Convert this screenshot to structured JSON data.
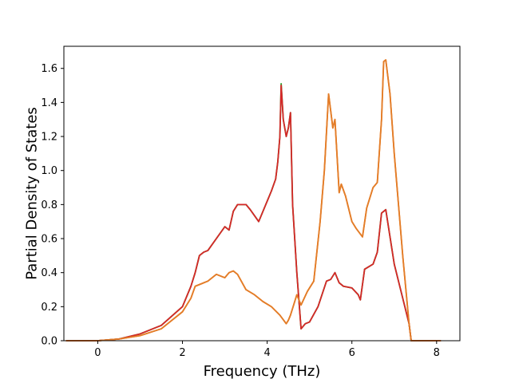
{
  "chart_data": {
    "type": "line",
    "title": "",
    "xlabel": "Frequency (THz)",
    "ylabel": "Partial Density of States",
    "xlim": [
      -0.8,
      8.55
    ],
    "ylim": [
      0.0,
      1.73
    ],
    "xticks": [
      0,
      2,
      4,
      6,
      8
    ],
    "xtick_labels": [
      "0",
      "2",
      "4",
      "6",
      "8"
    ],
    "yticks": [
      0.0,
      0.2,
      0.4,
      0.6,
      0.8,
      1.0,
      1.2,
      1.4,
      1.6
    ],
    "ytick_labels": [
      "0.0",
      "0.2",
      "0.4",
      "0.6",
      "0.8",
      "1.0",
      "1.2",
      "1.4",
      "1.6"
    ],
    "grid": false,
    "legend": "none",
    "series": [
      {
        "color": "#2ca02c",
        "x": [
          -0.75,
          0.0,
          0.5,
          1.0,
          1.5,
          2.0,
          2.2,
          2.3,
          2.4,
          2.5,
          2.6,
          2.8,
          3.0,
          3.1,
          3.2,
          3.3,
          3.5,
          3.6,
          3.8,
          4.0,
          4.1,
          4.2,
          4.25,
          4.3,
          4.33,
          4.38,
          4.45,
          4.5,
          4.55,
          4.6,
          4.7,
          4.8,
          4.9,
          5.0,
          5.2,
          5.4,
          5.5,
          5.6,
          5.7,
          5.8,
          6.0,
          6.15,
          6.2,
          6.3,
          6.5,
          6.6,
          6.7,
          6.8,
          7.0,
          7.2,
          7.35,
          7.4,
          8.1
        ],
        "y": [
          0.0,
          0.0,
          0.01,
          0.04,
          0.09,
          0.2,
          0.32,
          0.4,
          0.5,
          0.52,
          0.53,
          0.6,
          0.67,
          0.65,
          0.76,
          0.8,
          0.8,
          0.77,
          0.7,
          0.82,
          0.88,
          0.95,
          1.05,
          1.2,
          1.51,
          1.3,
          1.2,
          1.25,
          1.34,
          0.8,
          0.4,
          0.07,
          0.1,
          0.11,
          0.2,
          0.35,
          0.36,
          0.4,
          0.34,
          0.32,
          0.31,
          0.27,
          0.24,
          0.42,
          0.45,
          0.52,
          0.75,
          0.77,
          0.45,
          0.25,
          0.1,
          0.0,
          0.0
        ]
      },
      {
        "color": "#ff7f0e",
        "x": [
          -0.75,
          0.0,
          0.5,
          1.0,
          1.5,
          2.0,
          2.2,
          2.3,
          2.4,
          2.6,
          2.8,
          3.0,
          3.1,
          3.2,
          3.3,
          3.5,
          3.7,
          3.9,
          4.1,
          4.3,
          4.45,
          4.5,
          4.55,
          4.7,
          4.8,
          4.95,
          5.1,
          5.25,
          5.35,
          5.45,
          5.55,
          5.6,
          5.7,
          5.75,
          5.85,
          6.0,
          6.1,
          6.25,
          6.35,
          6.5,
          6.6,
          6.7,
          6.75,
          6.8,
          6.9,
          7.0,
          7.2,
          7.35,
          7.4,
          8.1
        ],
        "y": [
          0.0,
          0.0,
          0.01,
          0.03,
          0.07,
          0.17,
          0.25,
          0.32,
          0.33,
          0.35,
          0.39,
          0.37,
          0.4,
          0.41,
          0.39,
          0.3,
          0.27,
          0.23,
          0.2,
          0.15,
          0.1,
          0.12,
          0.15,
          0.27,
          0.21,
          0.29,
          0.35,
          0.7,
          1.0,
          1.45,
          1.25,
          1.3,
          0.87,
          0.92,
          0.85,
          0.7,
          0.66,
          0.61,
          0.78,
          0.9,
          0.93,
          1.3,
          1.64,
          1.65,
          1.45,
          1.1,
          0.5,
          0.1,
          0.0,
          0.0
        ]
      },
      {
        "color": "#d62728",
        "x": [
          -0.75,
          0.0,
          0.5,
          1.0,
          1.5,
          2.0,
          2.2,
          2.3,
          2.4,
          2.5,
          2.6,
          2.8,
          3.0,
          3.1,
          3.2,
          3.3,
          3.5,
          3.6,
          3.8,
          4.0,
          4.1,
          4.2,
          4.25,
          4.3,
          4.33,
          4.38,
          4.45,
          4.5,
          4.55,
          4.6,
          4.7,
          4.8,
          4.9,
          5.0,
          5.2,
          5.4,
          5.5,
          5.6,
          5.7,
          5.8,
          6.0,
          6.15,
          6.2,
          6.3,
          6.5,
          6.6,
          6.7,
          6.8,
          7.0,
          7.2,
          7.35,
          7.4,
          8.1
        ],
        "y": [
          0.0,
          0.0,
          0.01,
          0.04,
          0.09,
          0.2,
          0.32,
          0.4,
          0.5,
          0.52,
          0.53,
          0.6,
          0.67,
          0.65,
          0.76,
          0.8,
          0.8,
          0.77,
          0.7,
          0.82,
          0.88,
          0.95,
          1.05,
          1.2,
          1.5,
          1.3,
          1.2,
          1.25,
          1.34,
          0.8,
          0.4,
          0.07,
          0.1,
          0.11,
          0.2,
          0.35,
          0.36,
          0.4,
          0.34,
          0.32,
          0.31,
          0.27,
          0.24,
          0.42,
          0.45,
          0.52,
          0.75,
          0.77,
          0.45,
          0.25,
          0.1,
          0.0,
          0.0
        ]
      },
      {
        "color": "#e27d2a",
        "x": [
          -0.75,
          0.0,
          0.5,
          1.0,
          1.5,
          2.0,
          2.2,
          2.3,
          2.4,
          2.6,
          2.8,
          3.0,
          3.1,
          3.2,
          3.3,
          3.5,
          3.7,
          3.9,
          4.1,
          4.3,
          4.45,
          4.5,
          4.55,
          4.7,
          4.8,
          4.95,
          5.1,
          5.25,
          5.35,
          5.45,
          5.55,
          5.6,
          5.7,
          5.75,
          5.85,
          6.0,
          6.1,
          6.25,
          6.35,
          6.5,
          6.6,
          6.7,
          6.75,
          6.8,
          6.9,
          7.0,
          7.2,
          7.35,
          7.4,
          8.1
        ],
        "y": [
          0.0,
          0.0,
          0.01,
          0.03,
          0.07,
          0.17,
          0.25,
          0.32,
          0.33,
          0.35,
          0.39,
          0.37,
          0.4,
          0.41,
          0.39,
          0.3,
          0.27,
          0.23,
          0.2,
          0.15,
          0.1,
          0.12,
          0.15,
          0.27,
          0.21,
          0.29,
          0.35,
          0.7,
          1.0,
          1.45,
          1.25,
          1.3,
          0.87,
          0.92,
          0.85,
          0.7,
          0.66,
          0.61,
          0.78,
          0.9,
          0.93,
          1.3,
          1.64,
          1.65,
          1.45,
          1.1,
          0.5,
          0.1,
          0.0,
          0.0
        ]
      }
    ]
  }
}
